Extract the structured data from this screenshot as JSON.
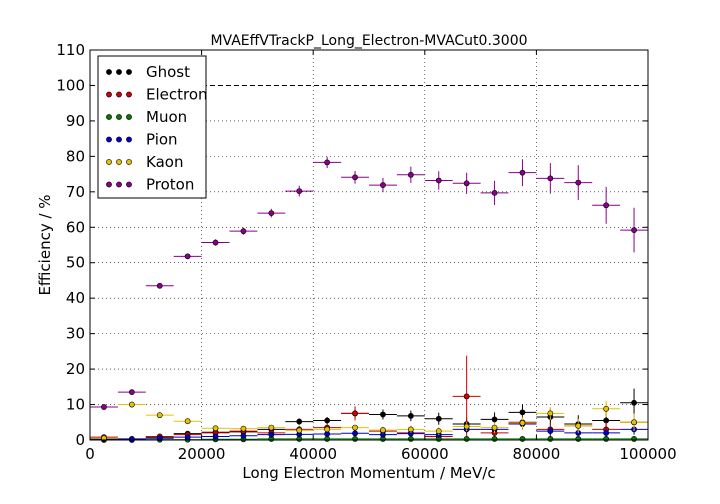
{
  "chart_data": {
    "type": "scatter",
    "title": "MVAEffVTrackP_Long_Electron-MVACut0.3000",
    "xlabel": "Long Electron Momentum / MeV/c",
    "ylabel": "Efficiency / %",
    "xlim": [
      0,
      100000
    ],
    "ylim": [
      0,
      110
    ],
    "xticks": [
      0,
      20000,
      40000,
      60000,
      80000,
      100000
    ],
    "yticks": [
      0,
      10,
      20,
      30,
      40,
      50,
      60,
      70,
      80,
      90,
      100,
      110
    ],
    "xtick_labels": [
      "0",
      "20000",
      "40000",
      "60000",
      "80000",
      "100000"
    ],
    "ytick_labels": [
      "0",
      "10",
      "20",
      "30",
      "40",
      "50",
      "60",
      "70",
      "80",
      "90",
      "100",
      "110"
    ],
    "reference_line": 100,
    "grid": true,
    "legend_position": "top-left",
    "bin_half_width": 2500,
    "x": [
      2500,
      7500,
      12500,
      17500,
      22500,
      27500,
      32500,
      37500,
      42500,
      47500,
      52500,
      57500,
      62500,
      67500,
      72500,
      77500,
      82500,
      87500,
      92500,
      97500
    ],
    "series": [
      {
        "name": "Ghost",
        "color": "#000000",
        "values": [
          0.3,
          0.3,
          0.8,
          1.8,
          2.2,
          2.3,
          3.0,
          5.2,
          5.5,
          7.5,
          7.2,
          6.8,
          6.0,
          4.5,
          5.8,
          7.8,
          6.5,
          4.5,
          5.5,
          10.5
        ],
        "errors": [
          0.3,
          0.3,
          0.5,
          0.6,
          0.6,
          0.6,
          0.7,
          0.9,
          1.0,
          1.3,
          1.4,
          1.5,
          1.7,
          1.8,
          2.0,
          2.3,
          2.4,
          2.5,
          3.0,
          4.0
        ]
      },
      {
        "name": "Electron",
        "color": "#cc0000",
        "values": [
          0.8,
          0.2,
          1.0,
          1.5,
          2.0,
          2.5,
          2.0,
          3.0,
          3.5,
          7.5,
          2.5,
          2.0,
          1.0,
          12.3,
          2.0,
          5.0,
          3.0,
          4.0,
          3.0,
          5.0
        ],
        "errors": [
          0.5,
          0.3,
          0.5,
          0.7,
          0.7,
          0.8,
          0.8,
          1.0,
          1.2,
          2.0,
          1.2,
          1.2,
          1.0,
          11.5,
          1.5,
          2.0,
          2.0,
          2.0,
          2.0,
          2.5
        ]
      },
      {
        "name": "Muon",
        "color": "#007a00",
        "values": [
          0.0,
          0.0,
          0.1,
          0.1,
          0.2,
          0.2,
          0.3,
          0.3,
          0.3,
          0.3,
          0.3,
          0.3,
          0.3,
          0.3,
          0.3,
          0.3,
          0.3,
          0.3,
          0.3,
          0.3
        ],
        "errors": [
          0.1,
          0.1,
          0.1,
          0.1,
          0.2,
          0.2,
          0.2,
          0.2,
          0.2,
          0.2,
          0.3,
          0.3,
          0.3,
          0.3,
          0.3,
          0.3,
          0.3,
          0.3,
          0.3,
          0.3
        ]
      },
      {
        "name": "Pion",
        "color": "#0000cc",
        "values": [
          0.2,
          0.2,
          0.5,
          0.8,
          1.0,
          1.2,
          1.5,
          1.6,
          1.7,
          1.9,
          1.5,
          1.8,
          1.5,
          3.0,
          3.0,
          4.5,
          2.5,
          2.0,
          2.0,
          3.0
        ],
        "errors": [
          0.2,
          0.2,
          0.3,
          0.4,
          0.4,
          0.5,
          0.5,
          0.6,
          0.6,
          0.7,
          0.7,
          0.8,
          0.8,
          1.0,
          1.0,
          1.2,
          1.2,
          1.2,
          1.2,
          1.5
        ]
      },
      {
        "name": "Kaon",
        "color": "#e6c200",
        "values": [
          0.5,
          10.0,
          7.0,
          5.3,
          3.3,
          3.2,
          3.5,
          2.7,
          3.0,
          3.5,
          2.8,
          3.0,
          2.5,
          3.8,
          3.5,
          4.8,
          7.5,
          4.0,
          8.8,
          5.0
        ],
        "errors": [
          0.4,
          0.7,
          0.5,
          0.5,
          0.5,
          0.5,
          0.6,
          0.6,
          0.7,
          0.8,
          0.9,
          1.0,
          1.1,
          1.3,
          1.5,
          1.6,
          1.8,
          2.0,
          2.3,
          2.5
        ]
      },
      {
        "name": "Proton",
        "color": "#880088",
        "values": [
          9.3,
          13.5,
          43.5,
          51.8,
          55.7,
          58.9,
          64.0,
          70.2,
          78.3,
          74.1,
          71.9,
          74.8,
          73.2,
          72.4,
          69.7,
          75.4,
          73.8,
          72.6,
          66.2,
          59.2
        ],
        "errors": [
          0.4,
          0.5,
          0.6,
          0.8,
          0.9,
          1.0,
          1.2,
          1.5,
          1.6,
          1.8,
          2.0,
          2.3,
          2.6,
          3.0,
          3.4,
          3.8,
          4.3,
          4.9,
          5.2,
          6.3
        ]
      }
    ]
  }
}
